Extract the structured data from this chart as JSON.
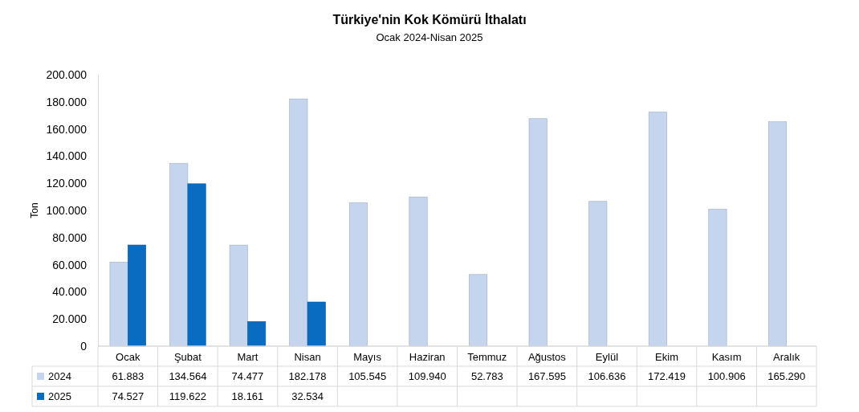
{
  "chart_data": {
    "type": "bar",
    "title": "Türkiye'nin  Kok Kömürü  İthalatı",
    "subtitle": "Ocak 2024-Nisan 2025",
    "ylabel": "Ton",
    "categories": [
      "Ocak",
      "Şubat",
      "Mart",
      "Nisan",
      "Mayıs",
      "Haziran",
      "Temmuz",
      "Ağustos",
      "Eylül",
      "Ekim",
      "Kasım",
      "Aralık"
    ],
    "series": [
      {
        "name": "2024",
        "color": "#c5d5ee",
        "values": [
          61883,
          134564,
          74477,
          182178,
          105545,
          109940,
          52783,
          167595,
          106636,
          172419,
          100906,
          165290
        ],
        "value_labels": [
          "61.883",
          "134.564",
          "74.477",
          "182.178",
          "105.545",
          "109.940",
          "52.783",
          "167.595",
          "106.636",
          "172.419",
          "100.906",
          "165.290"
        ]
      },
      {
        "name": "2025",
        "color": "#0a6cc0",
        "values": [
          74527,
          119622,
          18161,
          32534,
          null,
          null,
          null,
          null,
          null,
          null,
          null,
          null
        ],
        "value_labels": [
          "74.527",
          "119.622",
          "18.161",
          "32.534",
          null,
          null,
          null,
          null,
          null,
          null,
          null,
          null
        ]
      }
    ],
    "ylim": [
      0,
      200000
    ],
    "yticks": [
      {
        "value": 0,
        "label": "0"
      },
      {
        "value": 20000,
        "label": "20.000"
      },
      {
        "value": 40000,
        "label": "40.000"
      },
      {
        "value": 60000,
        "label": "60.000"
      },
      {
        "value": 80000,
        "label": "80.000"
      },
      {
        "value": 100000,
        "label": "100.000"
      },
      {
        "value": 120000,
        "label": "120.000"
      },
      {
        "value": 140000,
        "label": "140.000"
      },
      {
        "value": 160000,
        "label": "160.000"
      },
      {
        "value": 180000,
        "label": "180.000"
      },
      {
        "value": 200000,
        "label": "200.000"
      }
    ],
    "legend": "bottom"
  }
}
